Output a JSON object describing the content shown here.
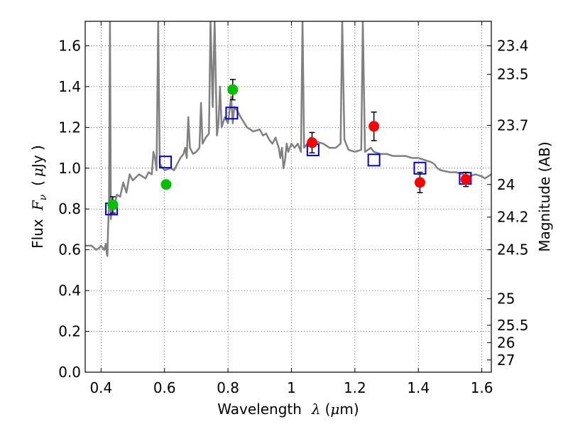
{
  "chart_data": {
    "type": "scatter",
    "xlabel_prefix": "Wavelength",
    "xlabel_symbol": "λ",
    "xlabel_unit_open": "(",
    "xlabel_unit_symbol": "μ",
    "xlabel_unit_rest": "m)",
    "ylabel_prefix": "Flux",
    "ylabel_symbol": "F",
    "ylabel_sub": "ν",
    "ylabel_unit_open": "(",
    "ylabel_unit_symbol": "μ",
    "ylabel_unit_rest": "Jy )",
    "y2label": "Magnitude (AB)",
    "xlim": [
      0.35,
      1.63
    ],
    "ylim": [
      0.0,
      1.72
    ],
    "grid": true,
    "xticks": [
      {
        "value": 0.4,
        "label": "0.4"
      },
      {
        "value": 0.6,
        "label": "0.6"
      },
      {
        "value": 0.8,
        "label": "0.8"
      },
      {
        "value": 1.0,
        "label": "1"
      },
      {
        "value": 1.2,
        "label": "1.2"
      },
      {
        "value": 1.4,
        "label": "1.4"
      },
      {
        "value": 1.6,
        "label": "1.6"
      }
    ],
    "yticks": [
      {
        "value": 0.0,
        "label": "0.0"
      },
      {
        "value": 0.2,
        "label": "0.2"
      },
      {
        "value": 0.4,
        "label": "0.4"
      },
      {
        "value": 0.6,
        "label": "0.6"
      },
      {
        "value": 0.8,
        "label": "0.8"
      },
      {
        "value": 1.0,
        "label": "1.0"
      },
      {
        "value": 1.2,
        "label": "1.2"
      },
      {
        "value": 1.4,
        "label": "1.4"
      },
      {
        "value": 1.6,
        "label": "1.6"
      }
    ],
    "y2ticks": [
      {
        "flux": 1.6,
        "label": "23.4"
      },
      {
        "flux": 1.46,
        "label": "23.5"
      },
      {
        "flux": 1.21,
        "label": "23.7"
      },
      {
        "flux": 0.92,
        "label": "24"
      },
      {
        "flux": 0.76,
        "label": "24.2"
      },
      {
        "flux": 0.6,
        "label": "24.5"
      },
      {
        "flux": 0.36,
        "label": "25"
      },
      {
        "flux": 0.23,
        "label": "25.5"
      },
      {
        "flux": 0.145,
        "label": "26"
      },
      {
        "flux": 0.06,
        "label": "27"
      }
    ],
    "series": [
      {
        "kind": "line",
        "color": "#808080",
        "points": [
          [
            0.35,
            0.62
          ],
          [
            0.37,
            0.62
          ],
          [
            0.385,
            0.6
          ],
          [
            0.395,
            0.61
          ],
          [
            0.4,
            0.62
          ],
          [
            0.41,
            0.6
          ],
          [
            0.415,
            0.63
          ],
          [
            0.418,
            0.58
          ],
          [
            0.42,
            0.57
          ],
          [
            0.422,
            0.7
          ],
          [
            0.425,
            0.82
          ],
          [
            0.428,
            1.72
          ],
          [
            0.431,
            0.75
          ],
          [
            0.435,
            0.85
          ],
          [
            0.44,
            0.8
          ],
          [
            0.45,
            0.87
          ],
          [
            0.46,
            0.86
          ],
          [
            0.47,
            0.93
          ],
          [
            0.48,
            0.88
          ],
          [
            0.49,
            0.97
          ],
          [
            0.5,
            0.94
          ],
          [
            0.52,
            0.97
          ],
          [
            0.53,
            0.96
          ],
          [
            0.54,
            0.95
          ],
          [
            0.55,
            0.98
          ],
          [
            0.56,
            0.97
          ],
          [
            0.565,
            1.08
          ],
          [
            0.57,
            1.05
          ],
          [
            0.575,
            0.99
          ],
          [
            0.58,
            1.72
          ],
          [
            0.585,
            1.02
          ],
          [
            0.6,
            0.99
          ],
          [
            0.62,
            1.0
          ],
          [
            0.63,
            0.99
          ],
          [
            0.64,
            1.02
          ],
          [
            0.65,
            1.05
          ],
          [
            0.66,
            1.07
          ],
          [
            0.665,
            1.1
          ],
          [
            0.67,
            1.05
          ],
          [
            0.675,
            1.25
          ],
          [
            0.68,
            1.1
          ],
          [
            0.69,
            1.07
          ],
          [
            0.7,
            1.08
          ],
          [
            0.71,
            1.1
          ],
          [
            0.715,
            1.32
          ],
          [
            0.72,
            1.12
          ],
          [
            0.73,
            1.15
          ],
          [
            0.74,
            1.17
          ],
          [
            0.745,
            1.72
          ],
          [
            0.752,
            1.3
          ],
          [
            0.758,
            1.72
          ],
          [
            0.765,
            1.16
          ],
          [
            0.77,
            1.22
          ],
          [
            0.775,
            1.4
          ],
          [
            0.78,
            1.2
          ],
          [
            0.79,
            1.25
          ],
          [
            0.8,
            1.22
          ],
          [
            0.81,
            1.35
          ],
          [
            0.815,
            1.22
          ],
          [
            0.82,
            1.3
          ],
          [
            0.83,
            1.28
          ],
          [
            0.84,
            1.25
          ],
          [
            0.86,
            1.2
          ],
          [
            0.88,
            1.18
          ],
          [
            0.9,
            1.19
          ],
          [
            0.91,
            1.16
          ],
          [
            0.92,
            1.17
          ],
          [
            0.93,
            1.14
          ],
          [
            0.94,
            1.12
          ],
          [
            0.95,
            1.15
          ],
          [
            0.96,
            1.1
          ],
          [
            0.965,
            1.05
          ],
          [
            0.97,
            1.1
          ],
          [
            0.975,
            1.0
          ],
          [
            0.98,
            1.04
          ],
          [
            0.985,
            1.12
          ],
          [
            0.99,
            1.08
          ],
          [
            1.0,
            1.12
          ],
          [
            1.01,
            1.1
          ],
          [
            1.02,
            1.12
          ],
          [
            1.03,
            1.08
          ],
          [
            1.035,
            1.72
          ],
          [
            1.04,
            1.1
          ],
          [
            1.05,
            1.12
          ],
          [
            1.06,
            1.15
          ],
          [
            1.08,
            1.13
          ],
          [
            1.1,
            1.12
          ],
          [
            1.12,
            1.1
          ],
          [
            1.14,
            1.1
          ],
          [
            1.155,
            1.12
          ],
          [
            1.16,
            1.72
          ],
          [
            1.167,
            1.14
          ],
          [
            1.18,
            1.09
          ],
          [
            1.2,
            1.08
          ],
          [
            1.22,
            1.09
          ],
          [
            1.225,
            1.72
          ],
          [
            1.232,
            1.08
          ],
          [
            1.25,
            1.1
          ],
          [
            1.26,
            1.08
          ],
          [
            1.28,
            1.07
          ],
          [
            1.3,
            1.07
          ],
          [
            1.32,
            1.06
          ],
          [
            1.34,
            1.06
          ],
          [
            1.36,
            1.06
          ],
          [
            1.38,
            1.05
          ],
          [
            1.4,
            1.05
          ],
          [
            1.42,
            1.04
          ],
          [
            1.44,
            1.03
          ],
          [
            1.45,
            1.02
          ],
          [
            1.46,
            1.0
          ],
          [
            1.47,
            0.99
          ],
          [
            1.5,
            0.98
          ],
          [
            1.52,
            0.98
          ],
          [
            1.54,
            0.97
          ],
          [
            1.56,
            0.96
          ],
          [
            1.58,
            0.97
          ],
          [
            1.6,
            0.96
          ],
          [
            1.61,
            0.95
          ],
          [
            1.62,
            0.96
          ],
          [
            1.63,
            0.97
          ]
        ]
      },
      {
        "kind": "squares",
        "color": "#0000cc",
        "points": [
          [
            0.433,
            0.8
          ],
          [
            0.603,
            1.03
          ],
          [
            0.812,
            1.27
          ],
          [
            1.068,
            1.09
          ],
          [
            1.26,
            1.04
          ],
          [
            1.405,
            1.0
          ],
          [
            1.548,
            0.95
          ]
        ]
      },
      {
        "kind": "circles",
        "color": "#00c000",
        "points": [
          [
            0.437,
            0.82,
            0.04
          ],
          [
            0.605,
            0.92,
            0.0
          ],
          [
            0.815,
            1.385,
            0.05
          ]
        ]
      },
      {
        "kind": "circles",
        "color": "#ff0000",
        "points": [
          [
            1.065,
            1.125,
            0.05
          ],
          [
            1.26,
            1.205,
            0.07
          ],
          [
            1.405,
            0.93,
            0.05
          ],
          [
            1.55,
            0.945,
            0.035
          ]
        ]
      }
    ]
  }
}
